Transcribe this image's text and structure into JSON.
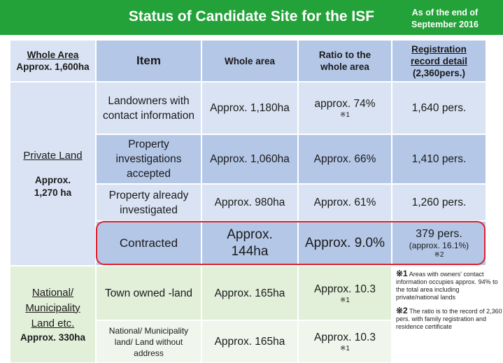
{
  "header": {
    "title": "Status of Candidate Site for the ISF",
    "as_of": "As of the end of September 2016"
  },
  "columns": {
    "whole_area_title": "Whole Area",
    "whole_area_value": "Approx. 1,600ha",
    "item": "Item",
    "whole_area": "Whole area",
    "ratio": "Ratio to the whole area",
    "registration_title": "Registration record detail",
    "registration_count": "(2,360pers.)"
  },
  "private_land": {
    "label": "Private Land",
    "area": "Approx. 1,270 ha",
    "rows": [
      {
        "item": "Landowners with contact information",
        "area": "Approx. 1,180ha",
        "ratio": "approx. 74%",
        "ratio_note": "※1",
        "registration": "1,640 pers."
      },
      {
        "item": "Property investigations accepted",
        "area": "Approx. 1,060ha",
        "ratio": "Approx. 66%",
        "registration": "1,410 pers."
      },
      {
        "item": "Property already investigated",
        "area": "Approx. 980ha",
        "ratio": "Approx. 61%",
        "registration": "1,260 pers."
      },
      {
        "item": "Contracted",
        "area": "Approx. 144ha",
        "ratio": "Approx. 9.0%",
        "registration": "379 pers.",
        "registration_sub": "(approx. 16.1%)",
        "registration_note": "※2"
      }
    ]
  },
  "national_land": {
    "label": "National/ Municipality Land etc.",
    "area": "Approx. 330ha",
    "rows": [
      {
        "item": "Town owned -land",
        "area": "Approx. 165ha",
        "ratio": "Approx. 10.3",
        "ratio_note": "※1"
      },
      {
        "item": "National/ Municipality land/ Land without address",
        "area": "Approx. 165ha",
        "ratio": "Approx. 10.3",
        "ratio_note": "※1"
      }
    ]
  },
  "notes": [
    {
      "mark": "※1",
      "text": "Areas with owners' contact information occupies approx. 94% to the total area including private/national lands"
    },
    {
      "mark": "※2",
      "text": "The ratio is to the record of 2,360 pers. with family registration and residence certificate"
    }
  ],
  "colors": {
    "header_green": "#22a238",
    "blue_dark": "#b4c7e7",
    "blue_light": "#dae3f3",
    "green_light": "#e2efd9",
    "highlight_red": "#e0202a"
  }
}
